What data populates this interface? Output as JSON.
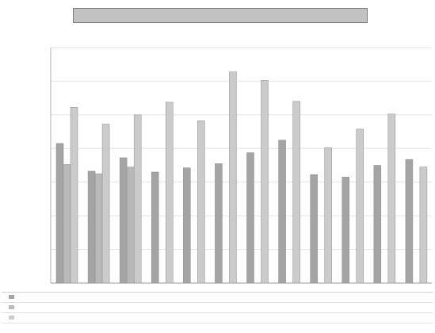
{
  "chart_data": {
    "type": "bar",
    "title": "",
    "subtitle": "",
    "xlabel": "",
    "ylabel": "",
    "ylim": [
      0,
      1400000
    ],
    "grid": true,
    "legend": "bottom",
    "colors": [
      "#a4a4a4",
      "#b9b9b9",
      "#cbcbcb"
    ],
    "categories_count": 12,
    "series": [
      {
        "values": [
          830000,
          665000,
          745000,
          660000,
          685000,
          710000,
          775000,
          850000,
          645000,
          630000,
          700000,
          735000
        ]
      },
      {
        "values": [
          705000,
          650000,
          690000,
          0,
          0,
          0,
          0,
          0,
          0,
          0,
          0,
          0
        ]
      },
      {
        "values": [
          1045000,
          945000,
          1000000,
          1075000,
          965000,
          1255000,
          1205000,
          1080000,
          805000,
          915000,
          1005000,
          690000
        ]
      }
    ]
  }
}
